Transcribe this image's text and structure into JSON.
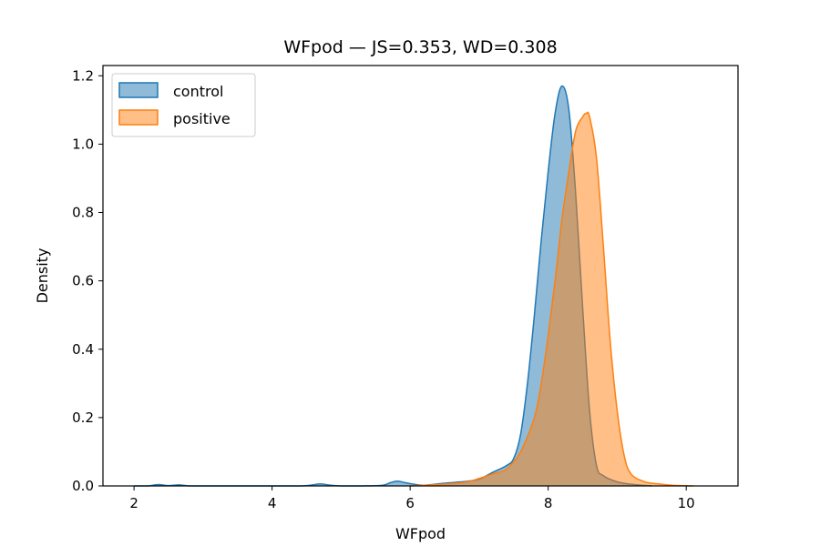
{
  "chart_data": {
    "type": "area",
    "title": "WFpod — JS=0.353, WD=0.308",
    "xlabel": "WFpod",
    "ylabel": "Density",
    "xlim": [
      1.55,
      10.75
    ],
    "ylim": [
      0,
      1.23
    ],
    "xticks": [
      2,
      4,
      6,
      8,
      10
    ],
    "yticks": [
      0.0,
      0.2,
      0.4,
      0.6,
      0.8,
      1.0,
      1.2
    ],
    "xtick_labels": [
      "2",
      "4",
      "6",
      "8",
      "10"
    ],
    "ytick_labels": [
      "0.0",
      "0.2",
      "0.4",
      "0.6",
      "0.8",
      "1.0",
      "1.2"
    ],
    "grid": false,
    "legend": "top-left",
    "series": [
      {
        "name": "control",
        "color": "#1f77b4",
        "x": [
          2.0,
          2.2,
          2.35,
          2.5,
          2.65,
          2.8,
          3.0,
          3.5,
          4.0,
          4.4,
          4.55,
          4.7,
          4.85,
          5.0,
          5.3,
          5.6,
          5.72,
          5.82,
          5.92,
          6.05,
          6.2,
          6.5,
          6.8,
          7.0,
          7.2,
          7.4,
          7.5,
          7.6,
          7.7,
          7.8,
          7.9,
          8.0,
          8.1,
          8.2,
          8.3,
          8.4,
          8.5,
          8.6,
          8.7,
          8.8,
          9.0,
          9.2,
          9.5
        ],
        "y": [
          0.0,
          0.0,
          0.004,
          0.001,
          0.003,
          0.0,
          0.0,
          0.0,
          0.0,
          0.0,
          0.002,
          0.006,
          0.002,
          0.0,
          0.0,
          0.002,
          0.01,
          0.014,
          0.01,
          0.005,
          0.002,
          0.008,
          0.013,
          0.02,
          0.04,
          0.06,
          0.08,
          0.15,
          0.3,
          0.5,
          0.72,
          0.92,
          1.09,
          1.17,
          1.1,
          0.85,
          0.52,
          0.22,
          0.06,
          0.03,
          0.012,
          0.005,
          0.0
        ]
      },
      {
        "name": "positive",
        "color": "#ff7f0e",
        "x": [
          6.0,
          6.4,
          6.8,
          7.0,
          7.2,
          7.4,
          7.6,
          7.8,
          7.9,
          8.0,
          8.1,
          8.2,
          8.3,
          8.4,
          8.5,
          8.55,
          8.6,
          8.7,
          8.8,
          8.9,
          9.0,
          9.1,
          9.2,
          9.4,
          9.6,
          9.8,
          10.1
        ],
        "y": [
          0.0,
          0.004,
          0.011,
          0.022,
          0.035,
          0.05,
          0.1,
          0.2,
          0.3,
          0.44,
          0.6,
          0.78,
          0.92,
          1.04,
          1.08,
          1.09,
          1.08,
          0.96,
          0.7,
          0.42,
          0.22,
          0.09,
          0.035,
          0.012,
          0.006,
          0.002,
          0.0
        ]
      }
    ]
  }
}
